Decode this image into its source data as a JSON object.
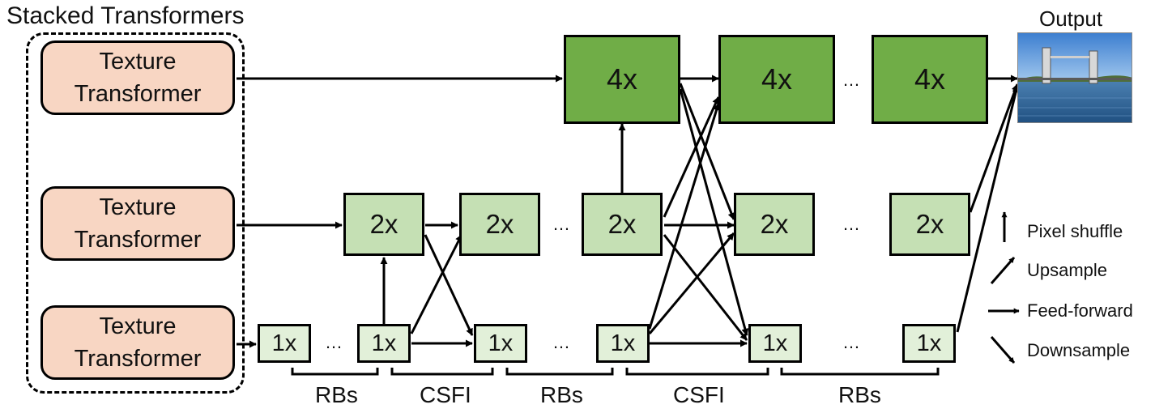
{
  "title": "Stacked Transformers",
  "texture_transformer_label": "Texture\nTransformer",
  "scales": {
    "s4": "4x",
    "s2": "2x",
    "s1": "1x"
  },
  "ellipsis": "…",
  "output_label": "Output",
  "bracket_labels": [
    "RBs",
    "CSFI",
    "RBs",
    "CSFI",
    "RBs"
  ],
  "legend": {
    "pixel_shuffle": "Pixel shuffle",
    "upsample": "Upsample",
    "feed_forward": "Feed-forward",
    "downsample": "Downsample"
  },
  "colors": {
    "transformer_fill": "#f8d6c3",
    "scale4_fill": "#70ad47",
    "scale2_fill": "#c5e0b4",
    "scale1_fill": "#e2f0d9"
  }
}
